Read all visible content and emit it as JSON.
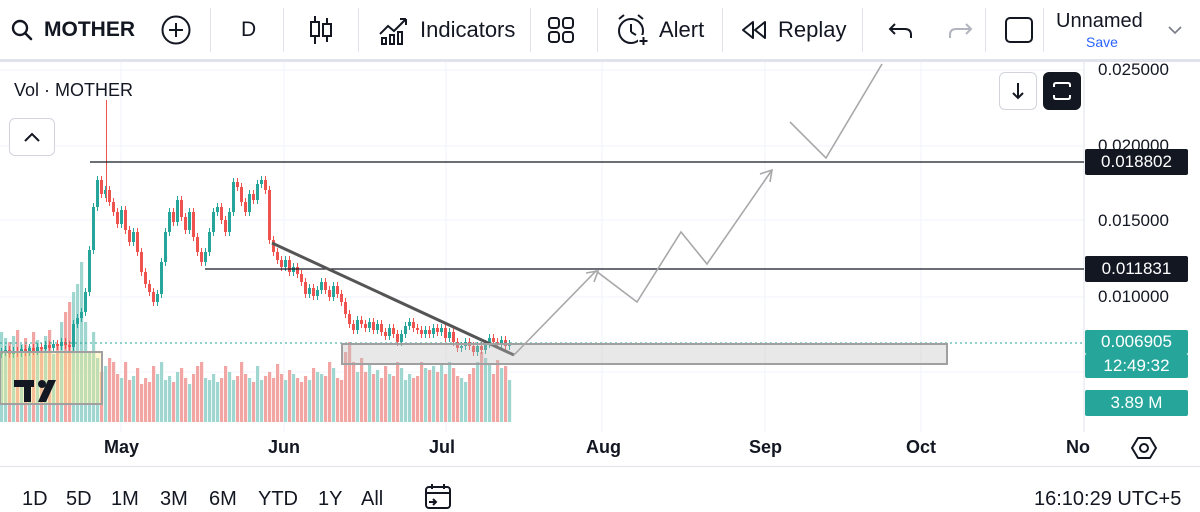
{
  "toolbar": {
    "symbol": "MOTHER",
    "interval": "D",
    "indicators_label": "Indicators",
    "alert_label": "Alert",
    "replay_label": "Replay",
    "layout_name": "Unnamed",
    "save_label": "Save"
  },
  "legend": {
    "volume_label": "Vol · MOTHER"
  },
  "price_axis": {
    "ticks": [
      "0.025000",
      "0.020000",
      "0.015000",
      "0.010000"
    ],
    "level_high": "0.018802",
    "level_mid": "0.011831",
    "last_price": "0.006905",
    "countdown": "12:49:32",
    "volume": "3.89 M"
  },
  "time_axis": {
    "labels": [
      "May",
      "Jun",
      "Jul",
      "Aug",
      "Sep",
      "Oct",
      "No"
    ]
  },
  "colors": {
    "up": "#26a69a",
    "down": "#ef5350",
    "up_volume": "#9fd6cf",
    "down_volume": "#f2a6a4",
    "dark": "#131722"
  },
  "ranges": [
    "1D",
    "5D",
    "1M",
    "3M",
    "6M",
    "YTD",
    "1Y",
    "All"
  ],
  "clock": "16:10:29 UTC+5",
  "chart_data": {
    "type": "candlestick",
    "symbol": "MOTHER",
    "interval": "D",
    "price_range": [
      0.0055,
      0.0255
    ],
    "horizontal_levels": [
      0.018802,
      0.011831
    ],
    "last_price": 0.006905,
    "last_volume": "3.89 M"
  }
}
